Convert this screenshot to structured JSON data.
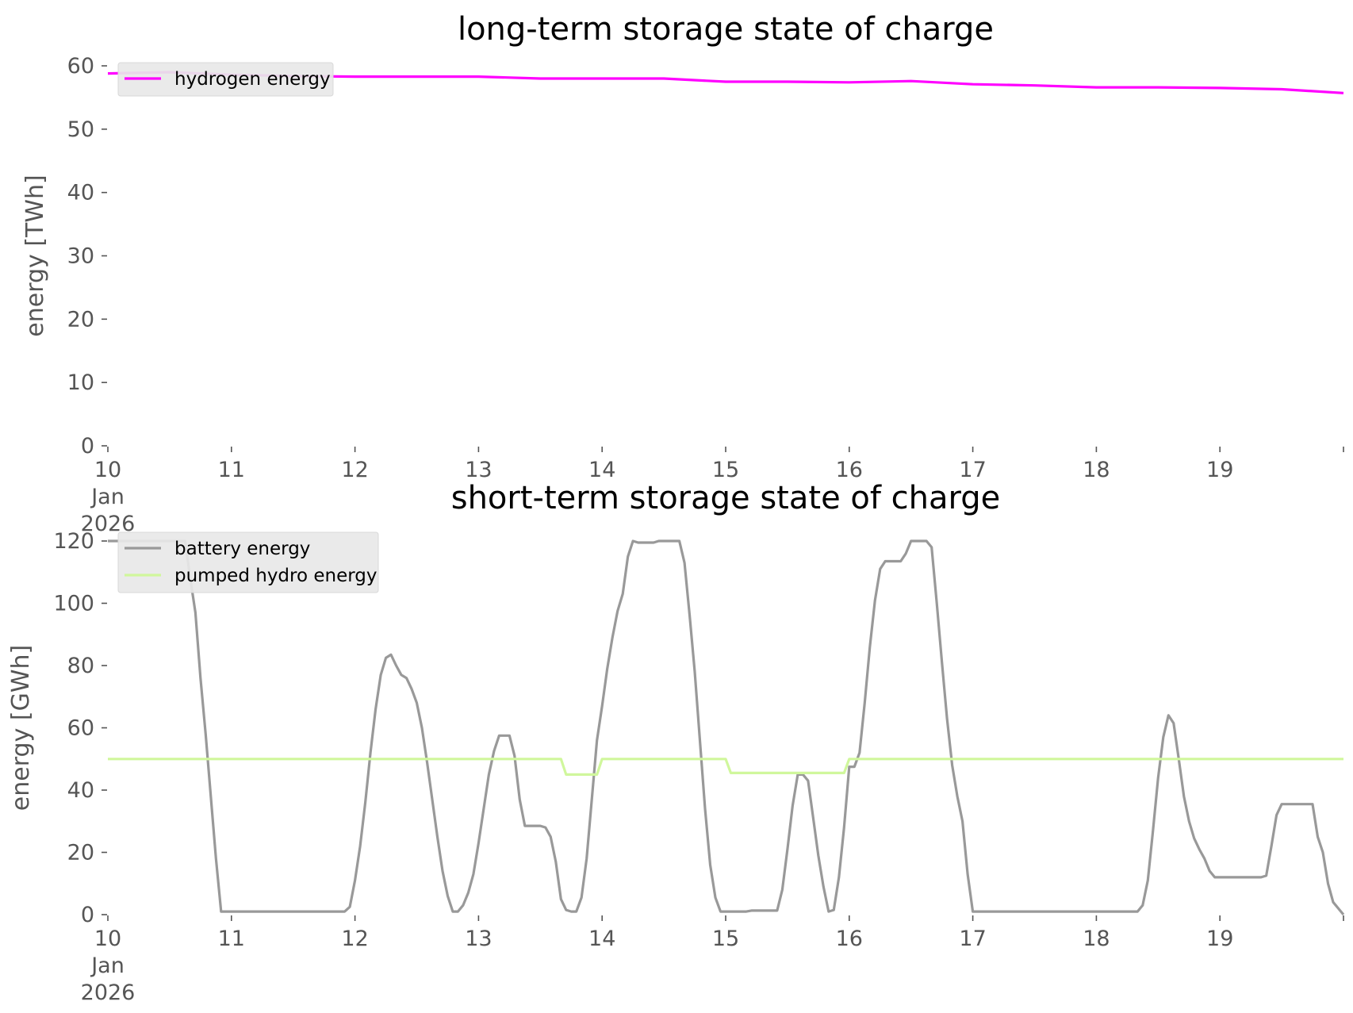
{
  "chart_data": [
    {
      "type": "line",
      "title": "long-term storage state of charge",
      "ylabel": "energy [TWh]",
      "xlim": [
        0,
        240
      ],
      "ylim": [
        0,
        60
      ],
      "yticks": [
        0,
        10,
        20,
        30,
        40,
        50,
        60
      ],
      "xticks": [
        {
          "x": 0,
          "label": "10",
          "sub": [
            "Jan",
            "2026"
          ]
        },
        {
          "x": 24,
          "label": "11",
          "sub": []
        },
        {
          "x": 48,
          "label": "12",
          "sub": []
        },
        {
          "x": 72,
          "label": "13",
          "sub": []
        },
        {
          "x": 96,
          "label": "14",
          "sub": []
        },
        {
          "x": 120,
          "label": "15",
          "sub": []
        },
        {
          "x": 144,
          "label": "16",
          "sub": []
        },
        {
          "x": 168,
          "label": "17",
          "sub": []
        },
        {
          "x": 192,
          "label": "18",
          "sub": []
        },
        {
          "x": 216,
          "label": "19",
          "sub": []
        },
        {
          "x": 240,
          "label": "",
          "sub": []
        }
      ],
      "legend_position": "top-left",
      "series": [
        {
          "name": "hydrogen energy",
          "color": "#ff00ff",
          "points": [
            [
              0,
              58.8
            ],
            [
              12,
              59.0
            ],
            [
              24,
              58.6
            ],
            [
              36,
              58.4
            ],
            [
              48,
              58.3
            ],
            [
              72,
              58.3
            ],
            [
              84,
              58.0
            ],
            [
              96,
              58.0
            ],
            [
              108,
              58.0
            ],
            [
              120,
              57.5
            ],
            [
              132,
              57.5
            ],
            [
              144,
              57.4
            ],
            [
              156,
              57.6
            ],
            [
              168,
              57.1
            ],
            [
              180,
              56.9
            ],
            [
              192,
              56.6
            ],
            [
              204,
              56.6
            ],
            [
              216,
              56.5
            ],
            [
              228,
              56.3
            ],
            [
              240,
              55.7
            ]
          ]
        }
      ]
    },
    {
      "type": "line",
      "title": "short-term storage state of charge",
      "ylabel": "energy [GWh]",
      "xlim": [
        0,
        240
      ],
      "ylim": [
        0,
        120
      ],
      "yticks": [
        0,
        20,
        40,
        60,
        80,
        100,
        120
      ],
      "xticks": [
        {
          "x": 0,
          "label": "10",
          "sub": [
            "Jan",
            "2026"
          ]
        },
        {
          "x": 24,
          "label": "11",
          "sub": []
        },
        {
          "x": 48,
          "label": "12",
          "sub": []
        },
        {
          "x": 72,
          "label": "13",
          "sub": []
        },
        {
          "x": 96,
          "label": "14",
          "sub": []
        },
        {
          "x": 120,
          "label": "15",
          "sub": []
        },
        {
          "x": 144,
          "label": "16",
          "sub": []
        },
        {
          "x": 168,
          "label": "17",
          "sub": []
        },
        {
          "x": 192,
          "label": "18",
          "sub": []
        },
        {
          "x": 216,
          "label": "19",
          "sub": []
        },
        {
          "x": 240,
          "label": "",
          "sub": []
        }
      ],
      "legend_position": "top-left",
      "series": [
        {
          "name": "battery energy",
          "color": "#999999",
          "points": [
            [
              0,
              120
            ],
            [
              15,
              120
            ],
            [
              16,
              108
            ],
            [
              17,
              97
            ],
            [
              18,
              76
            ],
            [
              19,
              58
            ],
            [
              20,
              38
            ],
            [
              21,
              18
            ],
            [
              22,
              1
            ],
            [
              46,
              1
            ],
            [
              47,
              2.5
            ],
            [
              48,
              11
            ],
            [
              49,
              22
            ],
            [
              50,
              36
            ],
            [
              51,
              52
            ],
            [
              52,
              66
            ],
            [
              53,
              77
            ],
            [
              54,
              82.5
            ],
            [
              55,
              83.5
            ],
            [
              56,
              80
            ],
            [
              57,
              77
            ],
            [
              58,
              76
            ],
            [
              59,
              72.5
            ],
            [
              60,
              68
            ],
            [
              61,
              60
            ],
            [
              62,
              49
            ],
            [
              63,
              37
            ],
            [
              64,
              25
            ],
            [
              65,
              14
            ],
            [
              66,
              6
            ],
            [
              67,
              1
            ],
            [
              68,
              1
            ],
            [
              69,
              3
            ],
            [
              70,
              7
            ],
            [
              71,
              13
            ],
            [
              72,
              23
            ],
            [
              73,
              34
            ],
            [
              74,
              45
            ],
            [
              75,
              52.5
            ],
            [
              76,
              57.5
            ],
            [
              78,
              57.5
            ],
            [
              79,
              51
            ],
            [
              80,
              37
            ],
            [
              81,
              28.5
            ],
            [
              84,
              28.5
            ],
            [
              85,
              28
            ],
            [
              86,
              25
            ],
            [
              87,
              17
            ],
            [
              88,
              5
            ],
            [
              89,
              1.5
            ],
            [
              90,
              1
            ],
            [
              91,
              1
            ],
            [
              92,
              5.5
            ],
            [
              93,
              18
            ],
            [
              94,
              37
            ],
            [
              95,
              56
            ],
            [
              96,
              67
            ],
            [
              97,
              79
            ],
            [
              98,
              89
            ],
            [
              99,
              97.5
            ],
            [
              100,
              103
            ],
            [
              101,
              115
            ],
            [
              102,
              120
            ],
            [
              103,
              119.5
            ],
            [
              106,
              119.5
            ],
            [
              107,
              120
            ],
            [
              111,
              120
            ],
            [
              112,
              113
            ],
            [
              113,
              96
            ],
            [
              114,
              78
            ],
            [
              115,
              56
            ],
            [
              116,
              34
            ],
            [
              117,
              16
            ],
            [
              118,
              5.5
            ],
            [
              119,
              1
            ],
            [
              124,
              1
            ],
            [
              125,
              1.3
            ],
            [
              130,
              1.3
            ],
            [
              131,
              8
            ],
            [
              132,
              21
            ],
            [
              133,
              35
            ],
            [
              134,
              45
            ],
            [
              135,
              45
            ],
            [
              136,
              43
            ],
            [
              137,
              31
            ],
            [
              138,
              19
            ],
            [
              139,
              9
            ],
            [
              140,
              1
            ],
            [
              141,
              1.5
            ],
            [
              142,
              12
            ],
            [
              143,
              28
            ],
            [
              144,
              47.5
            ],
            [
              145,
              47.5
            ],
            [
              146,
              52
            ],
            [
              147,
              68
            ],
            [
              148,
              86
            ],
            [
              149,
              101
            ],
            [
              150,
              111
            ],
            [
              151,
              113.5
            ],
            [
              154,
              113.5
            ],
            [
              155,
              116
            ],
            [
              156,
              120
            ],
            [
              159,
              120
            ],
            [
              160,
              118
            ],
            [
              161,
              100
            ],
            [
              162,
              81
            ],
            [
              163,
              63
            ],
            [
              164,
              48
            ],
            [
              165,
              38
            ],
            [
              166,
              30
            ],
            [
              167,
              13
            ],
            [
              168,
              1
            ],
            [
              200,
              1
            ],
            [
              201,
              3
            ],
            [
              202,
              11
            ],
            [
              203,
              27
            ],
            [
              204,
              44
            ],
            [
              205,
              57
            ],
            [
              206,
              64
            ],
            [
              207,
              61.5
            ],
            [
              208,
              50
            ],
            [
              209,
              38
            ],
            [
              210,
              30
            ],
            [
              211,
              24.5
            ],
            [
              212,
              21
            ],
            [
              213,
              18
            ],
            [
              214,
              14
            ],
            [
              215,
              12
            ],
            [
              224,
              12
            ],
            [
              225,
              12.5
            ],
            [
              226,
              22
            ],
            [
              227,
              32
            ],
            [
              228,
              35.5
            ],
            [
              234,
              35.5
            ],
            [
              235,
              25
            ],
            [
              236,
              20
            ],
            [
              237,
              10
            ],
            [
              238,
              4
            ],
            [
              240,
              0
            ]
          ]
        },
        {
          "name": "pumped hydro energy",
          "color": "#d0f79c",
          "points": [
            [
              0,
              50
            ],
            [
              88,
              50
            ],
            [
              89,
              45
            ],
            [
              95,
              45
            ],
            [
              96,
              50
            ],
            [
              120,
              50
            ],
            [
              121,
              45.5
            ],
            [
              143,
              45.5
            ],
            [
              144,
              50
            ],
            [
              240,
              50
            ]
          ]
        }
      ]
    }
  ]
}
